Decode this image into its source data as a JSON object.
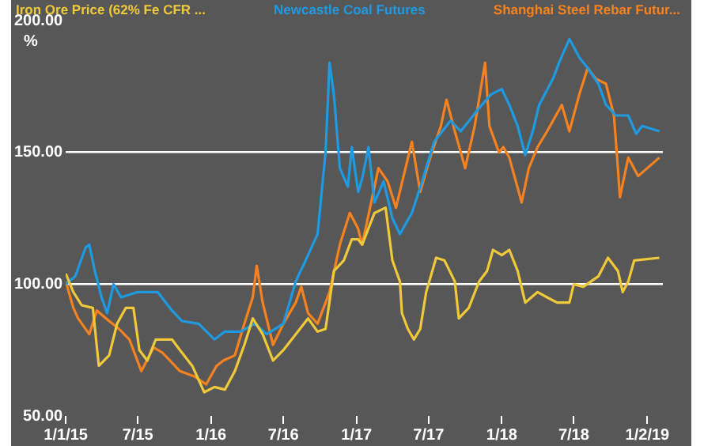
{
  "chart_data": {
    "type": "line",
    "ylabel": "%",
    "xlim": [
      "2015-01-01",
      "2019-02-10"
    ],
    "xticks": [
      {
        "value": "2015-01-01",
        "label": "1/1/15"
      },
      {
        "value": "2015-07-01",
        "label": "7/15"
      },
      {
        "value": "2016-01-01",
        "label": "1/16"
      },
      {
        "value": "2016-07-01",
        "label": "7/16"
      },
      {
        "value": "2017-01-01",
        "label": "1/17"
      },
      {
        "value": "2017-07-01",
        "label": "7/17"
      },
      {
        "value": "2018-01-01",
        "label": "1/18"
      },
      {
        "value": "2018-07-01",
        "label": "7/18"
      },
      {
        "value": "2019-01-02",
        "label": "1/2/19"
      }
    ],
    "ylim": [
      50,
      200
    ],
    "yticks": [
      {
        "value": 50,
        "label": "50.00"
      },
      {
        "value": 100,
        "label": "100.00"
      },
      {
        "value": 150,
        "label": "150.00"
      },
      {
        "value": 200,
        "label": "200.00"
      }
    ],
    "grid": "y",
    "legend": "top",
    "marker": "none",
    "series": [
      {
        "name": "Iron Ore Price (62% Fe CFR ...",
        "color": "#f0c93a",
        "x": [
          "2015-01-01",
          "2015-01-20",
          "2015-02-10",
          "2015-03-10",
          "2015-03-25",
          "2015-04-20",
          "2015-05-10",
          "2015-06-01",
          "2015-06-20",
          "2015-07-05",
          "2015-07-25",
          "2015-08-15",
          "2015-09-25",
          "2015-10-15",
          "2015-11-15",
          "2015-12-15",
          "2016-01-10",
          "2016-02-05",
          "2016-03-01",
          "2016-03-25",
          "2016-04-15",
          "2016-05-10",
          "2016-06-05",
          "2016-07-01",
          "2016-08-01",
          "2016-09-01",
          "2016-09-25",
          "2016-10-15",
          "2016-11-05",
          "2016-11-30",
          "2016-12-20",
          "2017-01-05",
          "2017-01-15",
          "2017-02-15",
          "2017-03-15",
          "2017-04-01",
          "2017-04-20",
          "2017-04-25",
          "2017-05-10",
          "2017-05-25",
          "2017-06-10",
          "2017-06-25",
          "2017-07-20",
          "2017-08-10",
          "2017-09-05",
          "2017-09-15",
          "2017-10-10",
          "2017-11-05",
          "2017-11-25",
          "2017-12-10",
          "2018-01-01",
          "2018-01-20",
          "2018-02-10",
          "2018-03-01",
          "2018-04-01",
          "2018-04-25",
          "2018-05-20",
          "2018-06-20",
          "2018-07-01",
          "2018-07-25",
          "2018-09-01",
          "2018-09-25",
          "2018-10-20",
          "2018-11-01",
          "2018-11-15",
          "2018-11-30",
          "2019-02-01"
        ],
        "values": [
          104,
          97,
          92,
          91,
          69,
          73,
          85,
          91,
          91,
          75,
          71,
          79,
          79,
          75,
          69,
          59,
          61,
          60,
          67,
          77,
          87,
          81,
          71,
          75,
          81,
          87,
          82,
          83,
          105,
          109,
          117,
          117,
          115,
          127,
          129,
          109,
          101,
          89,
          83,
          79,
          83,
          97,
          110,
          109,
          101,
          87,
          91,
          101,
          105,
          113,
          111,
          113,
          105,
          93,
          97,
          95,
          93,
          93,
          100,
          99,
          103,
          110,
          105,
          97,
          101,
          109,
          110
        ]
      },
      {
        "name": "Newcastle Coal Futures",
        "color": "#1f9ae0",
        "x": [
          "2015-01-01",
          "2015-01-25",
          "2015-02-20",
          "2015-03-01",
          "2015-03-15",
          "2015-04-01",
          "2015-04-15",
          "2015-05-01",
          "2015-05-20",
          "2015-07-01",
          "2015-08-20",
          "2015-09-25",
          "2015-10-20",
          "2015-12-01",
          "2016-01-10",
          "2016-02-05",
          "2016-03-15",
          "2016-04-20",
          "2016-05-20",
          "2016-07-01",
          "2016-08-01",
          "2016-09-01",
          "2016-09-25",
          "2016-10-15",
          "2016-10-25",
          "2016-11-05",
          "2016-11-20",
          "2016-12-10",
          "2016-12-20",
          "2017-01-05",
          "2017-01-15",
          "2017-01-31",
          "2017-02-15",
          "2017-03-10",
          "2017-04-01",
          "2017-04-20",
          "2017-05-20",
          "2017-06-15",
          "2017-07-15",
          "2017-08-25",
          "2017-09-20",
          "2017-11-01",
          "2017-12-05",
          "2018-01-01",
          "2018-01-20",
          "2018-02-10",
          "2018-03-01",
          "2018-03-20",
          "2018-04-05",
          "2018-05-10",
          "2018-05-25",
          "2018-06-20",
          "2018-07-15",
          "2018-08-05",
          "2018-09-01",
          "2018-09-20",
          "2018-10-15",
          "2018-11-15",
          "2018-12-05",
          "2018-12-20",
          "2019-02-01"
        ],
        "values": [
          100,
          103,
          114,
          115,
          105,
          95,
          89,
          100,
          95,
          97,
          97,
          90,
          86,
          85,
          79,
          82,
          82,
          85,
          81,
          85,
          101,
          111,
          119,
          150,
          184,
          172,
          144,
          137,
          152,
          135,
          140,
          152,
          131,
          139,
          125,
          119,
          127,
          139,
          154,
          162,
          158,
          166,
          172,
          174,
          168,
          160,
          149,
          158,
          168,
          178,
          184,
          193,
          186,
          182,
          176,
          168,
          164,
          164,
          157,
          160,
          158
        ]
      },
      {
        "name": "Shanghai Steel Rebar Futur...",
        "color": "#f5821f",
        "x": [
          "2015-01-01",
          "2015-01-20",
          "2015-02-01",
          "2015-03-01",
          "2015-03-20",
          "2015-04-20",
          "2015-05-15",
          "2015-06-10",
          "2015-07-10",
          "2015-08-10",
          "2015-09-01",
          "2015-10-15",
          "2015-11-20",
          "2015-12-20",
          "2016-01-15",
          "2016-02-01",
          "2016-03-01",
          "2016-03-25",
          "2016-04-15",
          "2016-04-25",
          "2016-05-10",
          "2016-06-05",
          "2016-07-01",
          "2016-08-01",
          "2016-08-15",
          "2016-09-01",
          "2016-09-25",
          "2016-10-25",
          "2016-11-20",
          "2016-12-15",
          "2017-01-05",
          "2017-01-15",
          "2017-02-01",
          "2017-02-25",
          "2017-03-20",
          "2017-04-10",
          "2017-05-20",
          "2017-06-10",
          "2017-07-05",
          "2017-08-01",
          "2017-08-15",
          "2017-09-05",
          "2017-10-01",
          "2017-10-25",
          "2017-11-20",
          "2017-12-01",
          "2017-12-25",
          "2018-01-05",
          "2018-01-20",
          "2018-02-20",
          "2018-03-10",
          "2018-04-01",
          "2018-04-25",
          "2018-06-01",
          "2018-06-20",
          "2018-07-15",
          "2018-08-05",
          "2018-08-25",
          "2018-09-20",
          "2018-10-10",
          "2018-10-20",
          "2018-10-25",
          "2018-11-15",
          "2018-12-10",
          "2019-02-01"
        ],
        "values": [
          101,
          91,
          87,
          81,
          90,
          86,
          83,
          79,
          67,
          76,
          74,
          67,
          65,
          62,
          69,
          71,
          73,
          85,
          95,
          107,
          93,
          77,
          85,
          93,
          99,
          89,
          85,
          97,
          115,
          127,
          121,
          115,
          127,
          144,
          139,
          129,
          154,
          135,
          148,
          160,
          170,
          158,
          144,
          160,
          184,
          160,
          150,
          152,
          148,
          131,
          144,
          152,
          158,
          168,
          158,
          172,
          182,
          178,
          176,
          164,
          144,
          133,
          148,
          141,
          148
        ]
      }
    ]
  }
}
